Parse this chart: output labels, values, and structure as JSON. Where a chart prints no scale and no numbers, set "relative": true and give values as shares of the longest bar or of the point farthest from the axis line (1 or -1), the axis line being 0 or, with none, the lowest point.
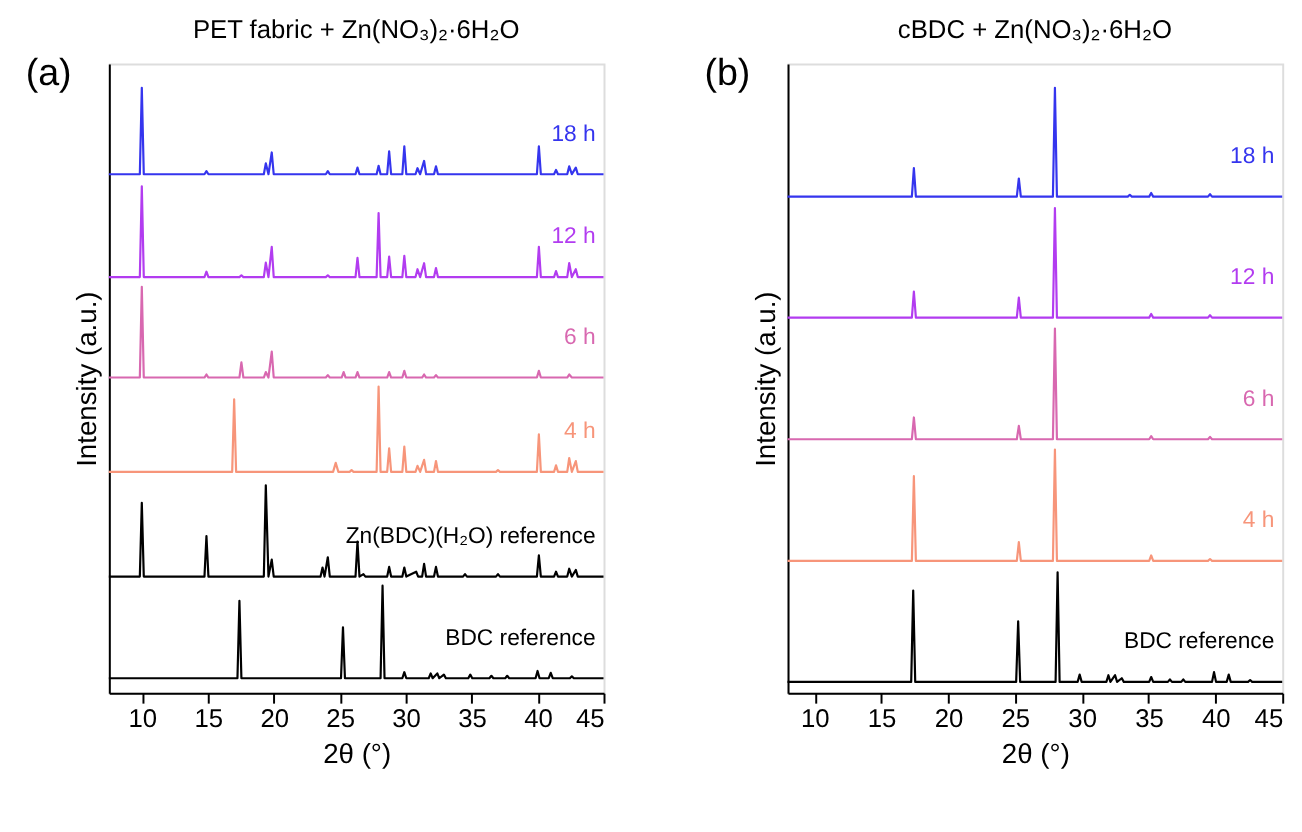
{
  "chart_data": [
    {
      "type": "line",
      "relative": true,
      "title": "PET fabric + Zn(NO₃)₂·6H₂O",
      "xlabel": "2θ (°)",
      "ylabel": "Intensity (a.u.)",
      "annotations": [
        "(a)"
      ],
      "xlim": [
        7.5,
        45
      ],
      "xticks": [
        10,
        15,
        20,
        25,
        30,
        35,
        40,
        45
      ],
      "grid": false,
      "legend": false,
      "line_style": "solid",
      "marker": "none",
      "series": [
        {
          "name": "18 h",
          "color": "#3535ee",
          "x": [
            7.5,
            9.85,
            10.0,
            10.15,
            14.75,
            14.9,
            15.05,
            19.25,
            19.4,
            19.6,
            19.85,
            20.0,
            23.95,
            24.1,
            24.25,
            26.2,
            26.35,
            26.5,
            27.8,
            27.95,
            28.1,
            28.6,
            28.75,
            28.9,
            29.75,
            29.9,
            30.05,
            30.75,
            30.9,
            31.1,
            31.4,
            31.55,
            32.15,
            32.3,
            32.45,
            39.95,
            40.1,
            40.25,
            41.25,
            41.4,
            41.55,
            42.25,
            42.4,
            42.6,
            42.9,
            43.05,
            45
          ],
          "values": [
            0.857,
            0.857,
            1.0,
            0.857,
            0.857,
            0.862,
            0.857,
            0.857,
            0.875,
            0.857,
            0.893,
            0.857,
            0.857,
            0.862,
            0.857,
            0.857,
            0.868,
            0.857,
            0.857,
            0.871,
            0.857,
            0.857,
            0.895,
            0.857,
            0.857,
            0.903,
            0.857,
            0.857,
            0.867,
            0.857,
            0.879,
            0.857,
            0.857,
            0.87,
            0.857,
            0.857,
            0.903,
            0.857,
            0.857,
            0.864,
            0.857,
            0.857,
            0.87,
            0.857,
            0.868,
            0.857,
            0.857
          ]
        },
        {
          "name": "12 h",
          "color": "#b23cf0",
          "x": [
            7.5,
            9.85,
            10.0,
            10.15,
            14.75,
            14.9,
            15.05,
            17.4,
            17.55,
            17.7,
            19.25,
            19.4,
            19.6,
            19.85,
            20.0,
            23.95,
            24.1,
            24.25,
            26.2,
            26.35,
            26.5,
            27.8,
            27.95,
            28.1,
            28.6,
            28.75,
            28.9,
            29.75,
            29.9,
            30.05,
            30.75,
            30.9,
            31.1,
            31.4,
            31.55,
            32.15,
            32.3,
            32.45,
            39.95,
            40.1,
            40.25,
            41.25,
            41.4,
            41.55,
            42.25,
            42.4,
            42.6,
            42.9,
            43.05,
            45
          ],
          "values": [
            0.687,
            0.687,
            0.837,
            0.687,
            0.687,
            0.696,
            0.687,
            0.687,
            0.69,
            0.687,
            0.687,
            0.711,
            0.687,
            0.737,
            0.687,
            0.687,
            0.69,
            0.687,
            0.687,
            0.719,
            0.687,
            0.687,
            0.793,
            0.687,
            0.687,
            0.721,
            0.687,
            0.687,
            0.722,
            0.687,
            0.687,
            0.7,
            0.687,
            0.71,
            0.687,
            0.687,
            0.702,
            0.687,
            0.687,
            0.737,
            0.687,
            0.687,
            0.697,
            0.687,
            0.687,
            0.71,
            0.687,
            0.7,
            0.687,
            0.687
          ]
        },
        {
          "name": "6 h",
          "color": "#d868b0",
          "x": [
            7.5,
            9.85,
            10.0,
            10.15,
            14.75,
            14.9,
            15.05,
            17.4,
            17.55,
            17.7,
            19.25,
            19.4,
            19.6,
            19.85,
            20.0,
            23.95,
            24.1,
            24.25,
            25.15,
            25.3,
            25.45,
            26.2,
            26.35,
            26.5,
            28.6,
            28.75,
            28.9,
            29.75,
            29.9,
            30.05,
            31.25,
            31.4,
            31.55,
            32.15,
            32.3,
            32.45,
            39.95,
            40.1,
            40.25,
            42.25,
            42.4,
            42.6,
            45
          ],
          "values": [
            0.521,
            0.521,
            0.671,
            0.521,
            0.521,
            0.526,
            0.521,
            0.521,
            0.546,
            0.521,
            0.521,
            0.53,
            0.521,
            0.564,
            0.521,
            0.521,
            0.525,
            0.521,
            0.521,
            0.53,
            0.521,
            0.521,
            0.53,
            0.521,
            0.521,
            0.53,
            0.521,
            0.521,
            0.532,
            0.521,
            0.521,
            0.526,
            0.521,
            0.521,
            0.525,
            0.521,
            0.521,
            0.532,
            0.521,
            0.521,
            0.526,
            0.521,
            0.521
          ]
        },
        {
          "name": "4 h",
          "color": "#f7957a",
          "x": [
            7.5,
            16.85,
            17.0,
            17.15,
            24.5,
            24.7,
            24.9,
            25.75,
            25.9,
            26.05,
            27.8,
            27.95,
            28.1,
            28.6,
            28.75,
            28.9,
            29.75,
            29.9,
            30.05,
            30.75,
            30.9,
            31.1,
            31.4,
            31.55,
            32.15,
            32.3,
            32.45,
            36.85,
            37.0,
            37.15,
            39.95,
            40.1,
            40.25,
            41.25,
            41.4,
            41.55,
            42.25,
            42.4,
            42.6,
            42.9,
            43.05,
            45
          ],
          "values": [
            0.365,
            0.365,
            0.485,
            0.365,
            0.365,
            0.38,
            0.365,
            0.365,
            0.368,
            0.365,
            0.365,
            0.506,
            0.365,
            0.365,
            0.404,
            0.365,
            0.365,
            0.407,
            0.365,
            0.365,
            0.375,
            0.365,
            0.385,
            0.365,
            0.365,
            0.383,
            0.365,
            0.365,
            0.368,
            0.365,
            0.365,
            0.427,
            0.365,
            0.365,
            0.376,
            0.365,
            0.365,
            0.388,
            0.365,
            0.383,
            0.365,
            0.365
          ]
        },
        {
          "name": "Zn(BDC)(H₂O) reference",
          "color": "#000000",
          "x": [
            7.5,
            9.85,
            10.0,
            10.15,
            14.75,
            14.9,
            15.05,
            19.25,
            19.4,
            19.6,
            19.85,
            20.0,
            23.55,
            23.7,
            23.85,
            24.1,
            24.25,
            26.2,
            26.35,
            26.5,
            26.8,
            26.95,
            28.6,
            28.75,
            28.9,
            29.75,
            29.9,
            30.05,
            30.8,
            30.95,
            31.25,
            31.4,
            31.55,
            32.15,
            32.3,
            32.45,
            34.35,
            34.5,
            34.65,
            36.85,
            37.0,
            37.15,
            39.95,
            40.1,
            40.25,
            41.25,
            41.4,
            41.55,
            42.25,
            42.4,
            42.6,
            42.9,
            43.05,
            45
          ],
          "values": [
            0.192,
            0.192,
            0.314,
            0.192,
            0.192,
            0.259,
            0.192,
            0.192,
            0.343,
            0.192,
            0.22,
            0.192,
            0.192,
            0.207,
            0.192,
            0.224,
            0.192,
            0.192,
            0.25,
            0.192,
            0.196,
            0.192,
            0.192,
            0.208,
            0.192,
            0.192,
            0.207,
            0.192,
            0.2,
            0.192,
            0.192,
            0.213,
            0.192,
            0.192,
            0.208,
            0.192,
            0.192,
            0.196,
            0.192,
            0.192,
            0.196,
            0.192,
            0.192,
            0.227,
            0.192,
            0.192,
            0.2,
            0.192,
            0.192,
            0.205,
            0.192,
            0.203,
            0.192,
            0.192
          ]
        },
        {
          "name": "BDC reference",
          "color": "#000000",
          "x": [
            7.5,
            17.25,
            17.4,
            17.55,
            25.1,
            25.25,
            25.4,
            28.1,
            28.25,
            28.4,
            29.75,
            29.9,
            30.05,
            31.75,
            31.9,
            32.05,
            32.4,
            32.55,
            32.9,
            33.05,
            34.75,
            34.9,
            35.05,
            36.35,
            36.5,
            36.65,
            37.55,
            37.7,
            37.85,
            39.85,
            40.0,
            40.15,
            40.85,
            41.0,
            41.15,
            42.45,
            42.6,
            42.75,
            45
          ],
          "values": [
            0.024,
            0.024,
            0.152,
            0.024,
            0.024,
            0.108,
            0.024,
            0.024,
            0.177,
            0.024,
            0.024,
            0.034,
            0.024,
            0.024,
            0.032,
            0.024,
            0.032,
            0.024,
            0.03,
            0.024,
            0.024,
            0.03,
            0.024,
            0.024,
            0.028,
            0.024,
            0.024,
            0.028,
            0.024,
            0.024,
            0.036,
            0.024,
            0.024,
            0.033,
            0.024,
            0.024,
            0.027,
            0.024,
            0.024
          ]
        }
      ]
    },
    {
      "type": "line",
      "relative": true,
      "title": "cBDC + Zn(NO₃)₂·6H₂O",
      "xlabel": "2θ (°)",
      "ylabel": "Intensity (a.u.)",
      "annotations": [
        "(b)"
      ],
      "xlim": [
        8,
        45
      ],
      "xticks": [
        10,
        15,
        20,
        25,
        30,
        35,
        40,
        45
      ],
      "grid": false,
      "legend": false,
      "line_style": "solid",
      "marker": "none",
      "series": [
        {
          "name": "18 h",
          "color": "#3535ee",
          "x": [
            8,
            17.3,
            17.45,
            17.6,
            25.15,
            25.3,
            25.45,
            27.85,
            28.0,
            28.15,
            33.45,
            33.6,
            33.75,
            35.05,
            35.2,
            35.35,
            39.45,
            39.6,
            39.75,
            45
          ],
          "values": [
            0.82,
            0.82,
            0.867,
            0.82,
            0.82,
            0.85,
            0.82,
            0.82,
            1.0,
            0.82,
            0.82,
            0.823,
            0.82,
            0.82,
            0.826,
            0.82,
            0.82,
            0.824,
            0.82,
            0.82
          ]
        },
        {
          "name": "12 h",
          "color": "#b23cf0",
          "x": [
            8,
            17.3,
            17.45,
            17.6,
            25.15,
            25.3,
            25.45,
            27.85,
            28.0,
            28.15,
            35.05,
            35.2,
            35.35,
            39.45,
            39.6,
            39.75,
            45
          ],
          "values": [
            0.62,
            0.62,
            0.663,
            0.62,
            0.62,
            0.653,
            0.62,
            0.62,
            0.801,
            0.62,
            0.62,
            0.626,
            0.62,
            0.62,
            0.624,
            0.62,
            0.62
          ]
        },
        {
          "name": "6 h",
          "color": "#d868b0",
          "x": [
            8,
            17.3,
            17.45,
            17.6,
            25.15,
            25.3,
            25.45,
            27.85,
            28.0,
            28.15,
            35.05,
            35.2,
            35.35,
            39.45,
            39.6,
            39.75,
            45
          ],
          "values": [
            0.419,
            0.419,
            0.455,
            0.419,
            0.419,
            0.441,
            0.419,
            0.419,
            0.602,
            0.419,
            0.419,
            0.424,
            0.419,
            0.419,
            0.423,
            0.419,
            0.419
          ]
        },
        {
          "name": "4 h",
          "color": "#f7957a",
          "x": [
            8,
            17.3,
            17.45,
            17.6,
            25.15,
            25.3,
            25.45,
            27.85,
            28.0,
            28.15,
            35.05,
            35.2,
            35.35,
            39.45,
            39.6,
            39.75,
            45
          ],
          "values": [
            0.218,
            0.218,
            0.358,
            0.218,
            0.218,
            0.249,
            0.218,
            0.218,
            0.402,
            0.218,
            0.218,
            0.227,
            0.218,
            0.218,
            0.221,
            0.218,
            0.218
          ]
        },
        {
          "name": "BDC reference",
          "color": "#000000",
          "x": [
            8,
            17.25,
            17.4,
            17.55,
            25.1,
            25.25,
            25.4,
            28.05,
            28.2,
            28.35,
            29.7,
            29.85,
            30.0,
            31.85,
            32.0,
            32.15,
            32.5,
            32.65,
            33.0,
            33.15,
            35.05,
            35.2,
            35.35,
            36.45,
            36.6,
            36.75,
            37.45,
            37.6,
            37.75,
            39.75,
            39.9,
            40.05,
            40.85,
            41.0,
            41.15,
            42.45,
            42.6,
            42.75,
            45
          ],
          "values": [
            0.018,
            0.018,
            0.169,
            0.018,
            0.018,
            0.118,
            0.018,
            0.018,
            0.199,
            0.018,
            0.018,
            0.03,
            0.018,
            0.018,
            0.029,
            0.018,
            0.029,
            0.018,
            0.024,
            0.018,
            0.018,
            0.026,
            0.018,
            0.018,
            0.022,
            0.018,
            0.018,
            0.022,
            0.018,
            0.018,
            0.034,
            0.018,
            0.018,
            0.03,
            0.018,
            0.018,
            0.021,
            0.018,
            0.018
          ]
        }
      ]
    }
  ]
}
